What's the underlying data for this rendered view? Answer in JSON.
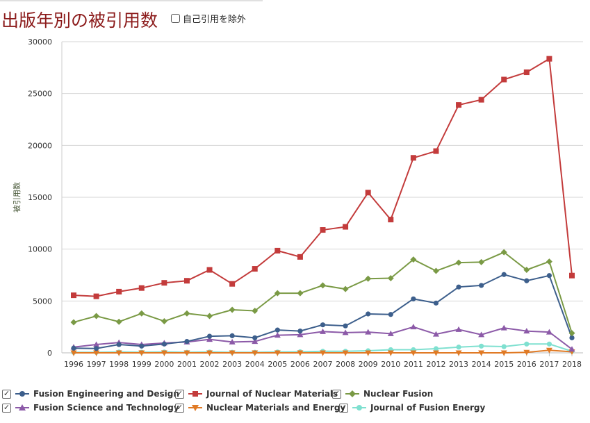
{
  "header": {
    "title": "出版年別の被引用数",
    "exclude_self_label": "自己引用を除外"
  },
  "chart_data": {
    "type": "line",
    "ylabel": "被引用数",
    "xlabel": "",
    "ylim": [
      0,
      30000
    ],
    "yticks": [
      0,
      5000,
      10000,
      15000,
      20000,
      25000,
      30000
    ],
    "grid": true,
    "legend_position": "bottom",
    "x": [
      "1996",
      "1997",
      "1998",
      "1999",
      "2000",
      "2001",
      "2002",
      "2003",
      "2004",
      "2005",
      "2006",
      "2007",
      "2008",
      "2009",
      "2010",
      "2011",
      "2012",
      "2013",
      "2014",
      "2015",
      "2016",
      "2017",
      "2018"
    ],
    "series": [
      {
        "name": "Fusion Engineering and Design",
        "color": "#3d5f8c",
        "marker": "circle",
        "values": [
          450,
          420,
          800,
          650,
          850,
          1100,
          1600,
          1650,
          1450,
          2200,
          2100,
          2700,
          2600,
          3750,
          3700,
          5200,
          4800,
          6350,
          6500,
          7550,
          6950,
          7450,
          1450
        ]
      },
      {
        "name": "Journal of Nuclear Materials",
        "color": "#c33b3b",
        "marker": "square",
        "values": [
          5550,
          5450,
          5900,
          6250,
          6750,
          6950,
          8000,
          6650,
          8100,
          9850,
          9250,
          11850,
          12150,
          15450,
          12850,
          18800,
          19450,
          23900,
          24400,
          26350,
          27050,
          28350,
          7450
        ]
      },
      {
        "name": "Nuclear Fusion",
        "color": "#7a9a45",
        "marker": "diamond",
        "values": [
          2950,
          3550,
          3000,
          3800,
          3050,
          3800,
          3550,
          4150,
          4050,
          5750,
          5750,
          6500,
          6150,
          7150,
          7200,
          9000,
          7900,
          8700,
          8750,
          9700,
          8000,
          8800,
          1900
        ]
      },
      {
        "name": "Fusion Science and Technology",
        "color": "#8c5aa8",
        "marker": "triangle",
        "values": [
          550,
          800,
          1000,
          800,
          950,
          1050,
          1300,
          1050,
          1100,
          1700,
          1750,
          2050,
          1950,
          2000,
          1850,
          2500,
          1800,
          2250,
          1750,
          2400,
          2100,
          2000,
          350
        ]
      },
      {
        "name": "Nuclear Materials and Energy",
        "color": "#e07a25",
        "marker": "triangle-down",
        "values": [
          0,
          0,
          0,
          0,
          0,
          0,
          0,
          0,
          0,
          0,
          0,
          0,
          0,
          0,
          0,
          0,
          0,
          0,
          0,
          0,
          50,
          250,
          100
        ]
      },
      {
        "name": "Journal of Fusion Energy",
        "color": "#7fe0d0",
        "marker": "circle",
        "values": [
          50,
          50,
          80,
          60,
          80,
          50,
          80,
          50,
          50,
          80,
          100,
          150,
          150,
          200,
          300,
          300,
          400,
          550,
          650,
          600,
          850,
          850,
          150
        ]
      }
    ]
  }
}
